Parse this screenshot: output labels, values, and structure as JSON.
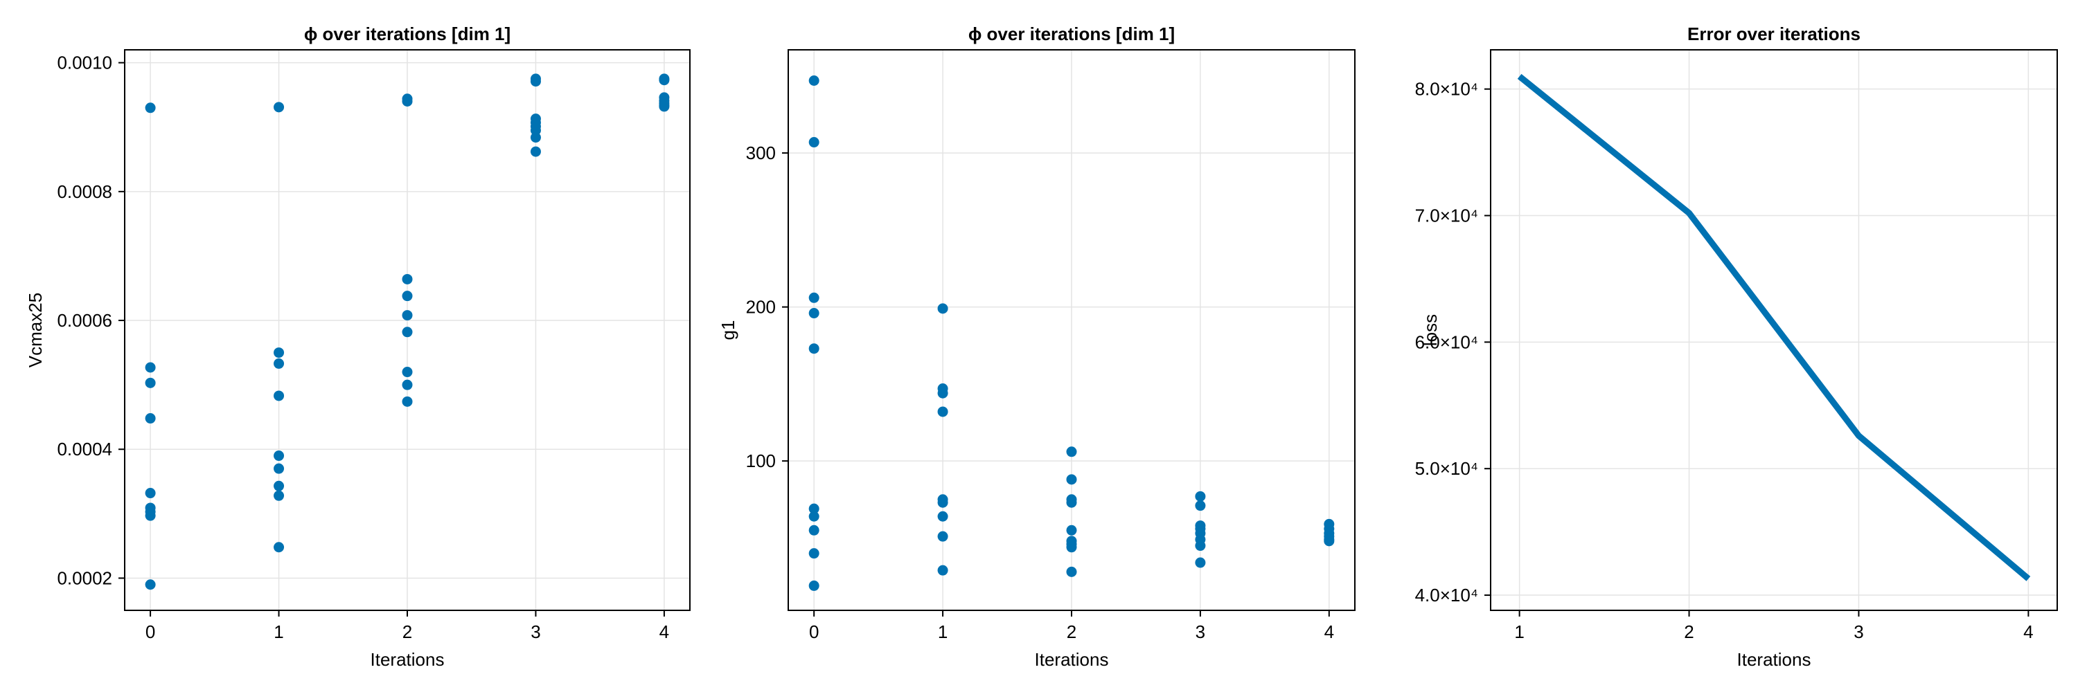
{
  "chart_data": [
    {
      "type": "scatter",
      "title": "ϕ over iterations [dim 1]",
      "xlabel": "Iterations",
      "ylabel": "Vcmax25",
      "xlim": [
        -0.2,
        4.2
      ],
      "ylim": [
        0.00015,
        0.00102
      ],
      "xticks": [
        0,
        1,
        2,
        3,
        4
      ],
      "xtick_labels": [
        "0",
        "1",
        "2",
        "3",
        "4"
      ],
      "yticks": [
        0.0002,
        0.0004,
        0.0006,
        0.0008,
        0.001
      ],
      "ytick_labels": [
        "0.0002",
        "0.0004",
        "0.0006",
        "0.0008",
        "0.0010"
      ],
      "grid": true,
      "color": "#0072b2",
      "points": [
        {
          "x": 0,
          "y": 0.00093
        },
        {
          "x": 0,
          "y": 0.000527
        },
        {
          "x": 0,
          "y": 0.000503
        },
        {
          "x": 0,
          "y": 0.000448
        },
        {
          "x": 0,
          "y": 0.000332
        },
        {
          "x": 0,
          "y": 0.000309
        },
        {
          "x": 0,
          "y": 0.000303
        },
        {
          "x": 0,
          "y": 0.000297
        },
        {
          "x": 0,
          "y": 0.00019
        },
        {
          "x": 1,
          "y": 0.000931
        },
        {
          "x": 1,
          "y": 0.00055
        },
        {
          "x": 1,
          "y": 0.000533
        },
        {
          "x": 1,
          "y": 0.000483
        },
        {
          "x": 1,
          "y": 0.00039
        },
        {
          "x": 1,
          "y": 0.00037
        },
        {
          "x": 1,
          "y": 0.000343
        },
        {
          "x": 1,
          "y": 0.000328
        },
        {
          "x": 1,
          "y": 0.000248
        },
        {
          "x": 2,
          "y": 0.000944
        },
        {
          "x": 2,
          "y": 0.00094
        },
        {
          "x": 2,
          "y": 0.000664
        },
        {
          "x": 2,
          "y": 0.000638
        },
        {
          "x": 2,
          "y": 0.000608
        },
        {
          "x": 2,
          "y": 0.000582
        },
        {
          "x": 2,
          "y": 0.00052
        },
        {
          "x": 2,
          "y": 0.0005
        },
        {
          "x": 2,
          "y": 0.000474
        },
        {
          "x": 3,
          "y": 0.000975
        },
        {
          "x": 3,
          "y": 0.000971
        },
        {
          "x": 3,
          "y": 0.000913
        },
        {
          "x": 3,
          "y": 0.000907
        },
        {
          "x": 3,
          "y": 0.000901
        },
        {
          "x": 3,
          "y": 0.000895
        },
        {
          "x": 3,
          "y": 0.000884
        },
        {
          "x": 3,
          "y": 0.000862
        },
        {
          "x": 4,
          "y": 0.000975
        },
        {
          "x": 4,
          "y": 0.000973
        },
        {
          "x": 4,
          "y": 0.000946
        },
        {
          "x": 4,
          "y": 0.000941
        },
        {
          "x": 4,
          "y": 0.000937
        },
        {
          "x": 4,
          "y": 0.000934
        },
        {
          "x": 4,
          "y": 0.000932
        }
      ]
    },
    {
      "type": "scatter",
      "title": "ϕ over iterations [dim 1]",
      "xlabel": "Iterations",
      "ylabel": "g1",
      "xlim": [
        -0.2,
        4.2
      ],
      "ylim": [
        3,
        367
      ],
      "xticks": [
        0,
        1,
        2,
        3,
        4
      ],
      "xtick_labels": [
        "0",
        "1",
        "2",
        "3",
        "4"
      ],
      "yticks": [
        100,
        200,
        300
      ],
      "ytick_labels": [
        "100",
        "200",
        "300"
      ],
      "grid": true,
      "color": "#0072b2",
      "points": [
        {
          "x": 0,
          "y": 347
        },
        {
          "x": 0,
          "y": 307
        },
        {
          "x": 0,
          "y": 206
        },
        {
          "x": 0,
          "y": 196
        },
        {
          "x": 0,
          "y": 173
        },
        {
          "x": 0,
          "y": 69
        },
        {
          "x": 0,
          "y": 64
        },
        {
          "x": 0,
          "y": 55
        },
        {
          "x": 0,
          "y": 40
        },
        {
          "x": 0,
          "y": 19
        },
        {
          "x": 1,
          "y": 199
        },
        {
          "x": 1,
          "y": 147
        },
        {
          "x": 1,
          "y": 144
        },
        {
          "x": 1,
          "y": 132
        },
        {
          "x": 1,
          "y": 75
        },
        {
          "x": 1,
          "y": 73
        },
        {
          "x": 1,
          "y": 64
        },
        {
          "x": 1,
          "y": 51
        },
        {
          "x": 1,
          "y": 29
        },
        {
          "x": 2,
          "y": 106
        },
        {
          "x": 2,
          "y": 88
        },
        {
          "x": 2,
          "y": 75
        },
        {
          "x": 2,
          "y": 73
        },
        {
          "x": 2,
          "y": 55
        },
        {
          "x": 2,
          "y": 48
        },
        {
          "x": 2,
          "y": 46
        },
        {
          "x": 2,
          "y": 44
        },
        {
          "x": 2,
          "y": 28
        },
        {
          "x": 3,
          "y": 77
        },
        {
          "x": 3,
          "y": 71
        },
        {
          "x": 3,
          "y": 58
        },
        {
          "x": 3,
          "y": 56
        },
        {
          "x": 3,
          "y": 53
        },
        {
          "x": 3,
          "y": 49
        },
        {
          "x": 3,
          "y": 45
        },
        {
          "x": 3,
          "y": 34
        },
        {
          "x": 4,
          "y": 59
        },
        {
          "x": 4,
          "y": 56
        },
        {
          "x": 4,
          "y": 53
        },
        {
          "x": 4,
          "y": 51
        },
        {
          "x": 4,
          "y": 49
        },
        {
          "x": 4,
          "y": 48
        }
      ]
    },
    {
      "type": "line",
      "title": "Error over iterations",
      "xlabel": "Iterations",
      "ylabel": "loss",
      "xlim": [
        0.83,
        4.17
      ],
      "ylim": [
        38800,
        83100
      ],
      "xticks": [
        1,
        2,
        3,
        4
      ],
      "xtick_labels": [
        "1",
        "2",
        "3",
        "4"
      ],
      "yticks": [
        40000,
        50000,
        60000,
        70000,
        80000
      ],
      "ytick_labels": [
        "4.0×10⁴",
        "5.0×10⁴",
        "6.0×10⁴",
        "7.0×10⁴",
        "8.0×10⁴"
      ],
      "grid": true,
      "color": "#0072b2",
      "x": [
        1,
        2,
        3,
        4
      ],
      "y": [
        81000,
        70200,
        52600,
        41300
      ]
    }
  ]
}
